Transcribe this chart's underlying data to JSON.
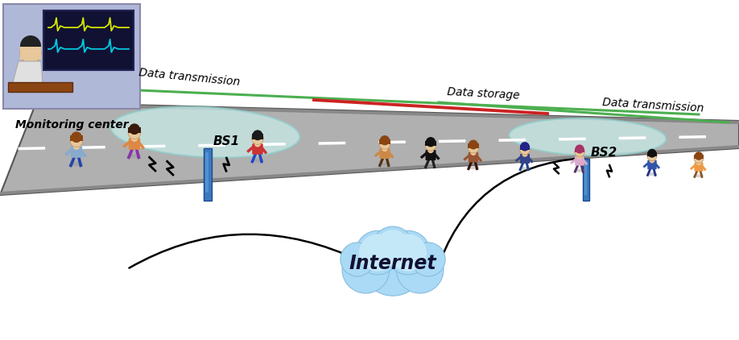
{
  "bg_color": "#ffffff",
  "road_color": "#b0b0b0",
  "road_edge_color": "#555555",
  "teal_zone_color": "#c8eae8",
  "teal_zone_edge": "#8ececa",
  "cloud_color_top": "#aadcf0",
  "cloud_color_bot": "#6ab8e0",
  "bs_color": "#3a7abf",
  "bs_color2": "#5590cf",
  "green_line_color": "#4caf50",
  "red_line_color": "#cc2222",
  "text_color": "#000000",
  "label_bs1": "BS1",
  "label_bs2": "BS2",
  "label_internet": "Internet",
  "label_monitoring": "Monitoring center",
  "label_data_trans1": "Data transmission",
  "label_data_trans2": "Data transmission",
  "label_data_storage": "Data storage",
  "mc_bg": "#b0b8d8",
  "mc_screen_bg": "#111133",
  "mc_screen_border": "#222255"
}
